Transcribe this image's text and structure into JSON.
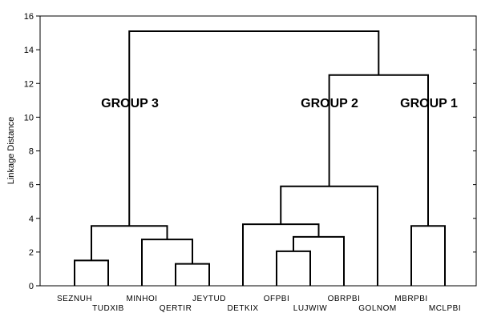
{
  "chart_data": {
    "type": "dendrogram",
    "title": "",
    "xlabel": "",
    "ylabel": "Linkage Distance",
    "ylim": [
      0,
      16
    ],
    "yticks": [
      0,
      2,
      4,
      6,
      8,
      10,
      12,
      14,
      16
    ],
    "grid": false,
    "leaves": [
      "SEZNUH",
      "TUDXIB",
      "MINHOI",
      "QERTIR",
      "JEYTUD",
      "DETKIX",
      "OFPBI",
      "LUJWIW",
      "OBRPBI",
      "GOLNOM",
      "MBRPBI",
      "MCLPBI"
    ],
    "merges": [
      {
        "a": "L0",
        "b": "L1",
        "height": 1.5
      },
      {
        "a": "L3",
        "b": "L4",
        "height": 1.3
      },
      {
        "a": "L2",
        "b": "M1",
        "height": 2.75
      },
      {
        "a": "M0",
        "b": "M2",
        "height": 3.55
      },
      {
        "a": "L6",
        "b": "L7",
        "height": 2.05
      },
      {
        "a": "M4",
        "b": "L8",
        "height": 2.9
      },
      {
        "a": "L5",
        "b": "M5",
        "height": 3.65
      },
      {
        "a": "M6",
        "b": "L9",
        "height": 5.9
      },
      {
        "a": "L10",
        "b": "L11",
        "height": 3.55
      },
      {
        "a": "M7",
        "b": "M8",
        "height": 12.5
      },
      {
        "a": "M3",
        "b": "M9",
        "height": 15.1
      }
    ],
    "annotations": [
      {
        "text": "GROUP 3",
        "near": "M3"
      },
      {
        "text": "GROUP 2",
        "near": "M7"
      },
      {
        "text": "GROUP 1",
        "near": "M8"
      }
    ]
  }
}
